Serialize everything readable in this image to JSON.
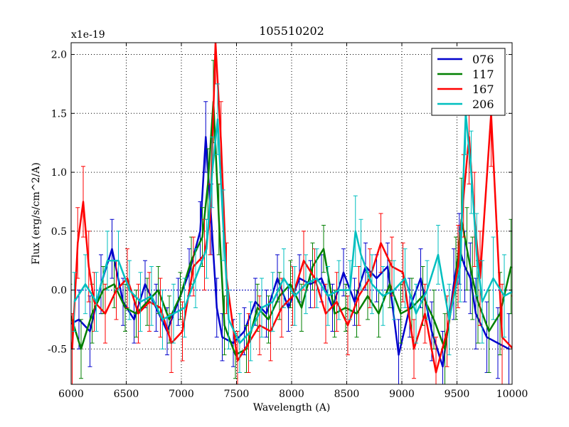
{
  "chart_data": {
    "type": "line",
    "title": "105510202",
    "xlabel": "Wavelength (A)",
    "ylabel": "Flux (erg/s/cm^2/A)",
    "offset_text": "x1e-19",
    "xlim": [
      6000,
      10000
    ],
    "ylim": [
      -0.8,
      2.1
    ],
    "xticks": [
      6000,
      6500,
      7000,
      7500,
      8000,
      8500,
      9000,
      9500,
      10000
    ],
    "yticks": [
      -0.5,
      0.0,
      0.5,
      1.0,
      1.5,
      2.0
    ],
    "xtick_labels": [
      "6000",
      "6500",
      "7000",
      "7500",
      "8000",
      "8500",
      "9000",
      "9500",
      "10000"
    ],
    "ytick_labels": [
      "-0.5",
      "0.0",
      "0.5",
      "1.0",
      "1.5",
      "2.0"
    ],
    "grid": true,
    "legend_position": "top-right",
    "reference_line": 0.0,
    "series": [
      {
        "name": "076",
        "color": "#0000cc",
        "x": [
          6000,
          6100,
          6200,
          6300,
          6400,
          6500,
          6600,
          6700,
          6800,
          6900,
          7000,
          7100,
          7200,
          7250,
          7300,
          7350,
          7400,
          7500,
          7600,
          7700,
          7800,
          7900,
          8000,
          8100,
          8200,
          8300,
          8400,
          8500,
          8600,
          8700,
          8800,
          8900,
          9000,
          9100,
          9200,
          9300,
          9400,
          9500,
          9550,
          9600,
          9650,
          9700,
          9800,
          9900,
          10000
        ],
        "y": [
          -0.3,
          -0.25,
          -0.35,
          0.05,
          0.35,
          -0.1,
          -0.25,
          0.05,
          -0.15,
          -0.35,
          -0.1,
          0.15,
          0.5,
          1.3,
          0.6,
          -0.15,
          -0.4,
          -0.45,
          -0.35,
          -0.1,
          -0.2,
          0.1,
          -0.15,
          0.1,
          0.05,
          0.1,
          -0.15,
          0.15,
          -0.1,
          0.2,
          0.1,
          0.2,
          -0.55,
          -0.15,
          0.1,
          -0.35,
          -0.65,
          0.05,
          0.35,
          0.2,
          0.1,
          -0.2,
          -0.4,
          -0.45,
          -0.5
        ],
        "err": [
          0.2,
          0.25,
          0.3,
          0.25,
          0.25,
          0.2,
          0.2,
          0.2,
          0.2,
          0.2,
          0.2,
          0.2,
          0.25,
          0.3,
          0.3,
          0.25,
          0.2,
          0.2,
          0.2,
          0.2,
          0.2,
          0.2,
          0.2,
          0.2,
          0.2,
          0.2,
          0.2,
          0.2,
          0.2,
          0.2,
          0.2,
          0.2,
          0.3,
          0.25,
          0.25,
          0.25,
          0.3,
          0.3,
          0.3,
          0.3,
          0.3,
          0.3,
          0.3,
          0.3,
          0.3
        ]
      },
      {
        "name": "117",
        "color": "#007f00",
        "x": [
          6000,
          6100,
          6200,
          6300,
          6400,
          6500,
          6600,
          6700,
          6800,
          6900,
          7000,
          7100,
          7200,
          7250,
          7300,
          7350,
          7400,
          7500,
          7600,
          7700,
          7800,
          7900,
          8000,
          8100,
          8200,
          8300,
          8400,
          8500,
          8600,
          8700,
          8800,
          8900,
          9000,
          9100,
          9200,
          9300,
          9400,
          9500,
          9550,
          9600,
          9650,
          9700,
          9800,
          9900,
          10000
        ],
        "y": [
          -0.2,
          -0.5,
          -0.2,
          0.0,
          0.05,
          -0.15,
          -0.2,
          -0.1,
          0.0,
          -0.25,
          -0.05,
          0.25,
          0.45,
          0.9,
          1.6,
          0.6,
          -0.3,
          -0.55,
          -0.5,
          -0.15,
          -0.25,
          -0.05,
          0.05,
          -0.15,
          0.2,
          0.35,
          -0.2,
          -0.15,
          -0.2,
          -0.05,
          -0.2,
          0.05,
          -0.2,
          -0.15,
          -0.05,
          -0.25,
          -0.5,
          0.1,
          0.6,
          0.35,
          0.1,
          -0.1,
          -0.35,
          -0.2,
          0.2
        ],
        "err": [
          0.25,
          0.25,
          0.25,
          0.2,
          0.2,
          0.2,
          0.2,
          0.2,
          0.2,
          0.2,
          0.2,
          0.2,
          0.25,
          0.3,
          0.35,
          0.3,
          0.25,
          0.2,
          0.2,
          0.2,
          0.2,
          0.2,
          0.2,
          0.2,
          0.2,
          0.2,
          0.2,
          0.2,
          0.2,
          0.2,
          0.2,
          0.2,
          0.25,
          0.25,
          0.25,
          0.25,
          0.3,
          0.35,
          0.35,
          0.35,
          0.35,
          0.35,
          0.35,
          0.35,
          0.4
        ]
      },
      {
        "name": "167",
        "color": "#ff0000",
        "x": [
          6000,
          6050,
          6100,
          6150,
          6200,
          6300,
          6400,
          6500,
          6600,
          6700,
          6800,
          6900,
          7000,
          7100,
          7200,
          7250,
          7300,
          7350,
          7400,
          7500,
          7600,
          7700,
          7800,
          7900,
          8000,
          8100,
          8200,
          8300,
          8400,
          8500,
          8600,
          8700,
          8800,
          8900,
          9000,
          9100,
          9200,
          9300,
          9400,
          9500,
          9550,
          9600,
          9650,
          9700,
          9800,
          9900,
          10000
        ],
        "y": [
          -0.5,
          0.4,
          0.75,
          0.2,
          -0.1,
          -0.2,
          0.0,
          0.1,
          -0.2,
          -0.1,
          -0.15,
          -0.45,
          -0.35,
          0.2,
          0.3,
          0.6,
          2.1,
          1.25,
          0.1,
          -0.6,
          -0.45,
          -0.3,
          -0.35,
          -0.15,
          -0.05,
          0.25,
          0.1,
          -0.2,
          -0.1,
          -0.3,
          -0.05,
          0.1,
          0.4,
          0.2,
          0.15,
          -0.5,
          -0.2,
          -0.7,
          -0.35,
          0.2,
          0.8,
          1.3,
          0.6,
          0.1,
          1.5,
          -0.4,
          -0.5
        ],
        "err": [
          0.3,
          0.3,
          0.3,
          0.3,
          0.25,
          0.25,
          0.25,
          0.25,
          0.25,
          0.25,
          0.25,
          0.25,
          0.25,
          0.25,
          0.3,
          0.3,
          0.35,
          0.35,
          0.3,
          0.25,
          0.25,
          0.25,
          0.25,
          0.25,
          0.25,
          0.25,
          0.25,
          0.25,
          0.25,
          0.25,
          0.25,
          0.25,
          0.25,
          0.25,
          0.25,
          0.25,
          0.25,
          0.3,
          0.3,
          0.35,
          0.35,
          0.4,
          0.4,
          0.4,
          0.45,
          0.45,
          0.45
        ]
      },
      {
        "name": "206",
        "color": "#00bfbf",
        "x": [
          6000,
          6100,
          6200,
          6300,
          6400,
          6500,
          6600,
          6700,
          6800,
          6900,
          7000,
          7100,
          7200,
          7250,
          7300,
          7350,
          7400,
          7500,
          7600,
          7700,
          7800,
          7900,
          8000,
          8100,
          8200,
          8300,
          8400,
          8500,
          8550,
          8600,
          8700,
          8800,
          8900,
          9000,
          9100,
          9200,
          9300,
          9400,
          9500,
          9550,
          9600,
          9650,
          9700,
          9800,
          9900,
          10000
        ],
        "y": [
          -0.1,
          0.05,
          -0.1,
          0.25,
          0.25,
          0.0,
          -0.1,
          -0.05,
          -0.25,
          -0.2,
          -0.15,
          0.1,
          0.35,
          1.0,
          1.45,
          0.55,
          -0.25,
          -0.45,
          -0.35,
          -0.15,
          -0.1,
          0.1,
          -0.05,
          0.05,
          0.1,
          -0.05,
          0.0,
          0.0,
          0.5,
          0.3,
          0.05,
          -0.05,
          0.0,
          0.1,
          -0.2,
          0.0,
          0.3,
          -0.25,
          0.2,
          1.5,
          1.0,
          0.3,
          -0.1,
          0.1,
          -0.05,
          0.0
        ],
        "err": [
          0.25,
          0.25,
          0.25,
          0.25,
          0.25,
          0.25,
          0.25,
          0.25,
          0.25,
          0.25,
          0.25,
          0.25,
          0.25,
          0.3,
          0.3,
          0.3,
          0.25,
          0.25,
          0.25,
          0.25,
          0.25,
          0.25,
          0.25,
          0.25,
          0.25,
          0.25,
          0.25,
          0.25,
          0.3,
          0.3,
          0.25,
          0.25,
          0.25,
          0.25,
          0.25,
          0.25,
          0.25,
          0.3,
          0.3,
          0.35,
          0.35,
          0.35,
          0.35,
          0.35,
          0.35,
          0.35
        ]
      }
    ]
  }
}
